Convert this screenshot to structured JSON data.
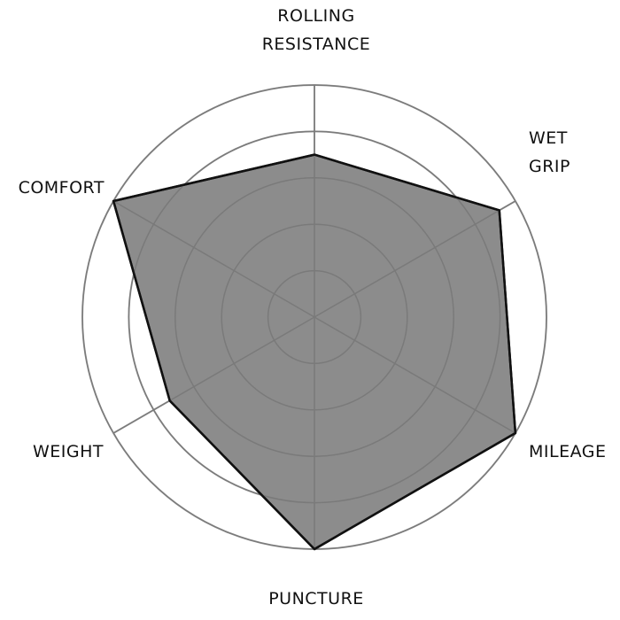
{
  "chart_data": {
    "type": "radar",
    "categories": [
      "ROLLING\nRESISTANCE",
      "WET\nGRIP",
      "MILEAGE",
      "PUNCTURE\nRESISTANCE",
      "WEIGHT",
      "COMFORT"
    ],
    "values": [
      3.5,
      4.6,
      5,
      5,
      3.6,
      5
    ],
    "color": "#8c8c8c",
    "rlim": [
      0,
      5
    ],
    "rticks": [
      1,
      2,
      3,
      4,
      5
    ],
    "grid": true
  }
}
